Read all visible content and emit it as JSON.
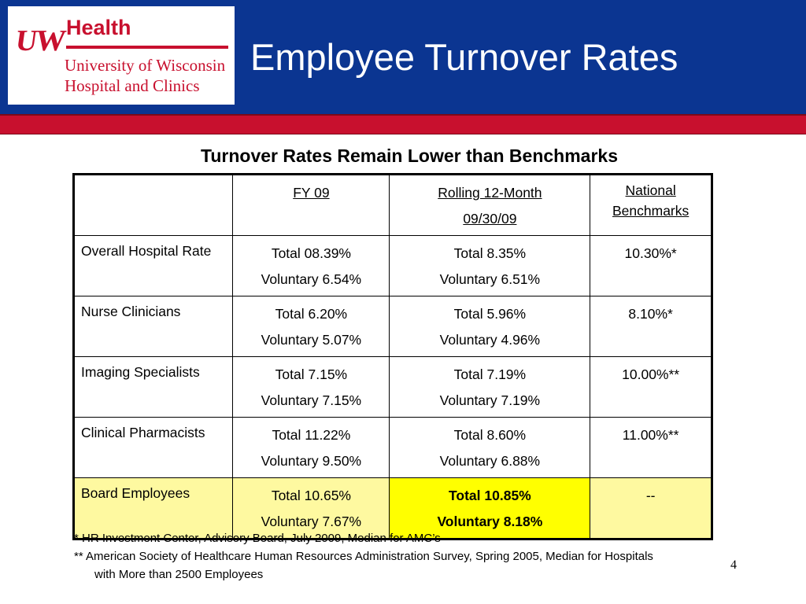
{
  "header": {
    "logo": {
      "mark": "UW",
      "health": "Health",
      "line1": "University of Wisconsin",
      "line2": "Hospital and Clinics"
    },
    "title": "Employee Turnover Rates",
    "colors": {
      "header_blue": "#0b3591",
      "accent_red": "#c8102e"
    }
  },
  "subtitle": "Turnover Rates Remain Lower than Benchmarks",
  "table": {
    "headers": [
      "",
      "FY 09",
      "Rolling 12-Month",
      "National Benchmarks"
    ],
    "header_sub": "09/30/09",
    "rows": [
      {
        "label": "Overall Hospital Rate",
        "fy09_total": "Total 08.39%",
        "fy09_vol": "Voluntary 6.54%",
        "roll_total": "Total 8.35%",
        "roll_vol": "Voluntary 6.51%",
        "benchmark": "10.30%*"
      },
      {
        "label": "Nurse Clinicians",
        "fy09_total": "Total 6.20%",
        "fy09_vol": "Voluntary 5.07%",
        "roll_total": "Total 5.96%",
        "roll_vol": "Voluntary 4.96%",
        "benchmark": "8.10%*"
      },
      {
        "label": "Imaging Specialists",
        "fy09_total": "Total 7.15%",
        "fy09_vol": "Voluntary 7.15%",
        "roll_total": "Total 7.19%",
        "roll_vol": "Voluntary 7.19%",
        "benchmark": "10.00%**"
      },
      {
        "label": "Clinical Pharmacists",
        "fy09_total": "Total 11.22%",
        "fy09_vol": "Voluntary 9.50%",
        "roll_total": "Total 8.60%",
        "roll_vol": "Voluntary 6.88%",
        "benchmark": "11.00%**"
      },
      {
        "label": "Board Employees",
        "fy09_total": "Total 10.65%",
        "fy09_vol": "Voluntary 7.67%",
        "roll_total": "Total 10.85%",
        "roll_vol": "Voluntary 8.18%",
        "benchmark": "--"
      }
    ],
    "highlight_colors": {
      "row": "#fef9a0",
      "cell": "#ffff00"
    }
  },
  "footnotes": [
    "* HR Investment Center, Advisory Board, July 2009, Median for AMC’s",
    "** American Society of Healthcare Human Resources Administration Survey, Spring 2005, Median for Hospitals",
    "with More than 2500 Employees"
  ],
  "page_number": "4"
}
